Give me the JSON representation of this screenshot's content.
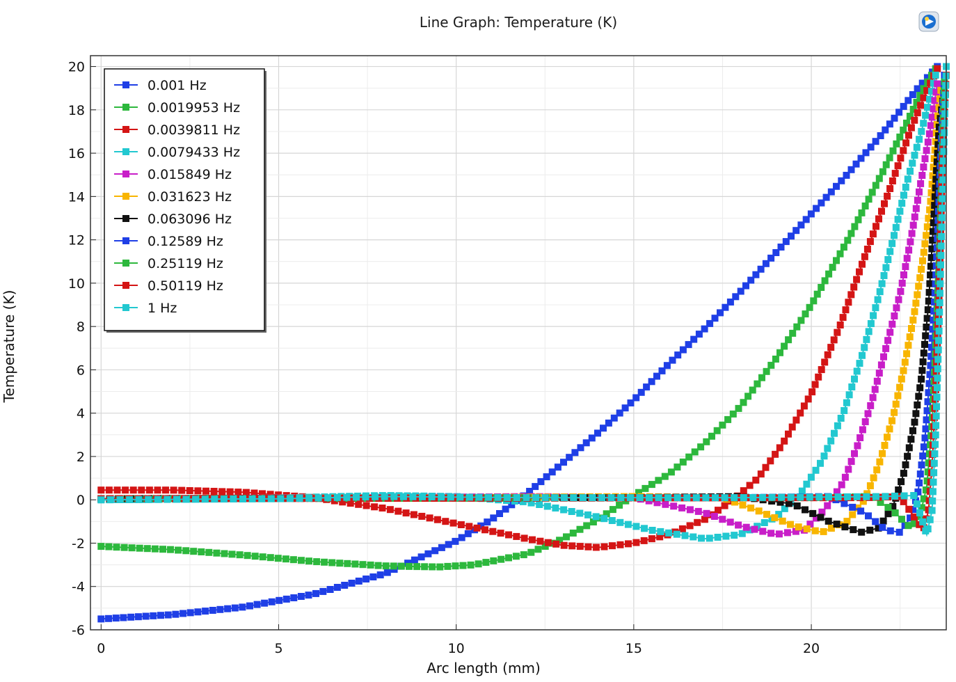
{
  "chart_data": {
    "type": "line",
    "title": "Line Graph: Temperature (K)",
    "xlabel": "Arc length (mm)",
    "ylabel": "Temperature (K)",
    "xlim": [
      -0.3,
      23.8
    ],
    "ylim": [
      -6,
      20.5
    ],
    "xticks": [
      0,
      5,
      10,
      15,
      20
    ],
    "yticks": [
      -6,
      -4,
      -2,
      0,
      2,
      4,
      6,
      8,
      10,
      12,
      14,
      16,
      18,
      20
    ],
    "grid": true,
    "legend_position": "top-left",
    "marker": "square",
    "series": [
      {
        "name": "0.001 Hz",
        "color": "#1f3fe6",
        "points": [
          [
            0,
            -5.5
          ],
          [
            2,
            -5.3
          ],
          [
            4,
            -4.95
          ],
          [
            6,
            -4.35
          ],
          [
            8,
            -3.4
          ],
          [
            10,
            -1.9
          ],
          [
            11,
            -0.9
          ],
          [
            12,
            0.3
          ],
          [
            13,
            1.7
          ],
          [
            14,
            3.1
          ],
          [
            15,
            4.6
          ],
          [
            16,
            6.3
          ],
          [
            17,
            7.9
          ],
          [
            18,
            9.6
          ],
          [
            19,
            11.4
          ],
          [
            20,
            13.2
          ],
          [
            21,
            15.0
          ],
          [
            22,
            16.9
          ],
          [
            23,
            19.0
          ],
          [
            23.55,
            20.0
          ]
        ]
      },
      {
        "name": "0.0019953 Hz",
        "color": "#2db83d",
        "points": [
          [
            0,
            -2.15
          ],
          [
            2,
            -2.3
          ],
          [
            4,
            -2.55
          ],
          [
            6,
            -2.85
          ],
          [
            8,
            -3.05
          ],
          [
            9.5,
            -3.1
          ],
          [
            10.5,
            -3.0
          ],
          [
            12,
            -2.5
          ],
          [
            13,
            -1.8
          ],
          [
            14,
            -0.9
          ],
          [
            15,
            0.2
          ],
          [
            16,
            1.2
          ],
          [
            17,
            2.6
          ],
          [
            18,
            4.3
          ],
          [
            19,
            6.5
          ],
          [
            20,
            9.0
          ],
          [
            21,
            11.9
          ],
          [
            22,
            15.1
          ],
          [
            22.6,
            17.1
          ],
          [
            23.1,
            18.8
          ],
          [
            23.5,
            19.9
          ]
        ]
      },
      {
        "name": "0.0039811 Hz",
        "color": "#d41515",
        "points": [
          [
            0,
            0.45
          ],
          [
            2,
            0.45
          ],
          [
            4,
            0.35
          ],
          [
            6,
            0.1
          ],
          [
            8,
            -0.4
          ],
          [
            10,
            -1.1
          ],
          [
            12,
            -1.8
          ],
          [
            13,
            -2.1
          ],
          [
            14,
            -2.2
          ],
          [
            15,
            -2.0
          ],
          [
            16,
            -1.6
          ],
          [
            17,
            -0.9
          ],
          [
            17.8,
            0.0
          ],
          [
            18.5,
            1.0
          ],
          [
            19.2,
            2.6
          ],
          [
            20,
            4.9
          ],
          [
            20.8,
            8.0
          ],
          [
            21.5,
            11.2
          ],
          [
            22.2,
            14.3
          ],
          [
            22.8,
            17.1
          ],
          [
            23.2,
            18.7
          ],
          [
            23.55,
            19.9
          ]
        ]
      },
      {
        "name": "0.0079433 Hz",
        "color": "#22c8d0",
        "points": [
          [
            0,
            0.0
          ],
          [
            4,
            0.05
          ],
          [
            8,
            0.2
          ],
          [
            10,
            0.15
          ],
          [
            12,
            -0.1
          ],
          [
            14,
            -0.8
          ],
          [
            15.5,
            -1.4
          ],
          [
            17,
            -1.8
          ],
          [
            18,
            -1.6
          ],
          [
            19,
            -0.8
          ],
          [
            19.7,
            0.3
          ],
          [
            20.3,
            1.8
          ],
          [
            20.9,
            4.0
          ],
          [
            21.4,
            6.5
          ],
          [
            21.9,
            9.4
          ],
          [
            22.3,
            12.0
          ],
          [
            22.7,
            14.7
          ],
          [
            23.1,
            17.0
          ],
          [
            23.5,
            19.6
          ]
        ]
      },
      {
        "name": "0.015849 Hz",
        "color": "#c81ec8",
        "points": [
          [
            0,
            0.05
          ],
          [
            8,
            0.1
          ],
          [
            12,
            0.15
          ],
          [
            15,
            0.1
          ],
          [
            17,
            -0.6
          ],
          [
            18,
            -1.2
          ],
          [
            19,
            -1.6
          ],
          [
            19.8,
            -1.4
          ],
          [
            20.4,
            -0.4
          ],
          [
            20.9,
            0.8
          ],
          [
            21.3,
            2.5
          ],
          [
            21.7,
            4.5
          ],
          [
            22.1,
            7.0
          ],
          [
            22.5,
            9.5
          ],
          [
            22.8,
            12.0
          ],
          [
            23.1,
            14.8
          ],
          [
            23.35,
            17.1
          ],
          [
            23.55,
            19.2
          ]
        ]
      },
      {
        "name": "0.031623 Hz",
        "color": "#f8b500",
        "points": [
          [
            0,
            0.05
          ],
          [
            10,
            0.1
          ],
          [
            15,
            0.15
          ],
          [
            17.5,
            0.1
          ],
          [
            18.5,
            -0.5
          ],
          [
            19.5,
            -1.2
          ],
          [
            20.3,
            -1.5
          ],
          [
            21.0,
            -1.0
          ],
          [
            21.5,
            0.0
          ],
          [
            21.9,
            1.6
          ],
          [
            22.3,
            3.8
          ],
          [
            22.6,
            6.0
          ],
          [
            22.9,
            8.6
          ],
          [
            23.15,
            11.2
          ],
          [
            23.35,
            13.6
          ],
          [
            23.55,
            17.5
          ],
          [
            23.65,
            18.9
          ]
        ]
      },
      {
        "name": "0.063096 Hz",
        "color": "#111111",
        "points": [
          [
            0,
            0.05
          ],
          [
            15,
            0.1
          ],
          [
            18,
            0.15
          ],
          [
            19.5,
            -0.2
          ],
          [
            20.5,
            -1.0
          ],
          [
            21.4,
            -1.5
          ],
          [
            21.9,
            -1.3
          ],
          [
            22.3,
            -0.3
          ],
          [
            22.6,
            1.2
          ],
          [
            22.9,
            3.5
          ],
          [
            23.1,
            5.6
          ],
          [
            23.3,
            9.0
          ],
          [
            23.45,
            13.0
          ],
          [
            23.6,
            17.2
          ],
          [
            23.7,
            18.4
          ]
        ]
      },
      {
        "name": "0.12589 Hz",
        "color": "#1f3fe6",
        "points": [
          [
            0,
            0.05
          ],
          [
            18,
            0.1
          ],
          [
            20.5,
            0.15
          ],
          [
            21.5,
            -0.6
          ],
          [
            22.1,
            -1.4
          ],
          [
            22.5,
            -1.5
          ],
          [
            22.8,
            -0.8
          ],
          [
            23.0,
            0.3
          ],
          [
            23.2,
            2.8
          ],
          [
            23.35,
            6.0
          ],
          [
            23.5,
            10.0
          ],
          [
            23.6,
            14.0
          ],
          [
            23.7,
            18.0
          ],
          [
            23.75,
            19.6
          ]
        ]
      },
      {
        "name": "0.25119 Hz",
        "color": "#2db83d",
        "points": [
          [
            0,
            0.05
          ],
          [
            20,
            0.1
          ],
          [
            21.7,
            0.15
          ],
          [
            22.3,
            -0.5
          ],
          [
            22.8,
            -1.3
          ],
          [
            23.05,
            -0.8
          ],
          [
            23.25,
            0.6
          ],
          [
            23.4,
            3.5
          ],
          [
            23.5,
            7.0
          ],
          [
            23.6,
            11.0
          ],
          [
            23.7,
            16.8
          ],
          [
            23.75,
            19.3
          ]
        ]
      },
      {
        "name": "0.50119 Hz",
        "color": "#d41515",
        "points": [
          [
            0,
            0.05
          ],
          [
            21.5,
            0.1
          ],
          [
            22.5,
            0.15
          ],
          [
            22.9,
            -0.8
          ],
          [
            23.15,
            -1.4
          ],
          [
            23.3,
            -0.5
          ],
          [
            23.4,
            1.5
          ],
          [
            23.5,
            5.0
          ],
          [
            23.6,
            9.5
          ],
          [
            23.7,
            15.8
          ],
          [
            23.8,
            19.6
          ]
        ]
      },
      {
        "name": "1 Hz",
        "color": "#22c8d0",
        "points": [
          [
            0,
            0.0
          ],
          [
            5,
            0.05
          ],
          [
            8,
            0.15
          ],
          [
            12,
            0.1
          ],
          [
            18,
            0.1
          ],
          [
            22,
            0.15
          ],
          [
            22.9,
            0.2
          ],
          [
            23.25,
            -1.6
          ],
          [
            23.4,
            -0.5
          ],
          [
            23.5,
            3.0
          ],
          [
            23.6,
            8.0
          ],
          [
            23.7,
            14.5
          ],
          [
            23.8,
            20.0
          ]
        ]
      }
    ]
  }
}
